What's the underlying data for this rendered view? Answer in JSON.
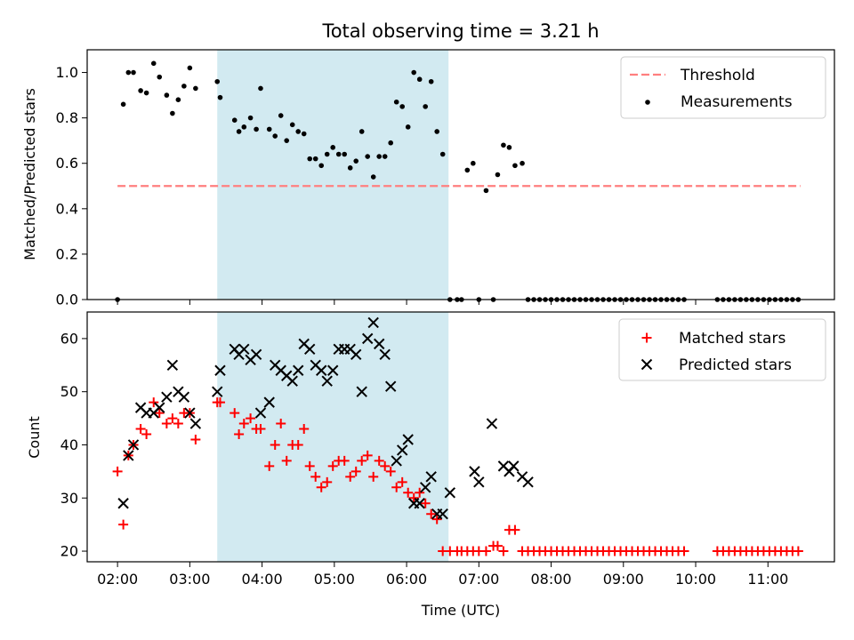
{
  "chart_data": {
    "title": "Total observing time = 3.21 h",
    "shaded_interval_hours": [
      3.38,
      6.58
    ],
    "colors": {
      "shade": "#add8e6",
      "threshold": "#ff7f7f",
      "matched": "#ff0000",
      "predicted": "#000000",
      "measurements": "#000000"
    },
    "x_axis": {
      "label": "Time (UTC)",
      "range_hours": [
        1.58,
        11.92
      ],
      "ticks": [
        {
          "value": 2,
          "label": "02:00"
        },
        {
          "value": 3,
          "label": "03:00"
        },
        {
          "value": 4,
          "label": "04:00"
        },
        {
          "value": 5,
          "label": "05:00"
        },
        {
          "value": 6,
          "label": "06:00"
        },
        {
          "value": 7,
          "label": "07:00"
        },
        {
          "value": 8,
          "label": "08:00"
        },
        {
          "value": 9,
          "label": "09:00"
        },
        {
          "value": 10,
          "label": "10:00"
        },
        {
          "value": 11,
          "label": "11:00"
        }
      ]
    },
    "charts": [
      {
        "type": "scatter",
        "ylabel": "Matched/Predicted stars",
        "ylim": [
          0,
          1.1
        ],
        "yticks": [
          0.0,
          0.2,
          0.4,
          0.6,
          0.8,
          1.0
        ],
        "ytick_labels": [
          "0.0",
          "0.2",
          "0.4",
          "0.6",
          "0.8",
          "1.0"
        ],
        "legend_position": "top-right",
        "threshold": {
          "name": "Threshold",
          "value": 0.5,
          "x_range": [
            2.0,
            11.45
          ]
        },
        "measurements": {
          "name": "Measurements",
          "x": [
            2.0,
            2.08,
            2.15,
            2.22,
            2.32,
            2.4,
            2.5,
            2.58,
            2.68,
            2.76,
            2.84,
            2.92,
            3.0,
            3.08,
            3.38,
            3.42,
            3.62,
            3.68,
            3.75,
            3.84,
            3.92,
            3.98,
            4.1,
            4.18,
            4.26,
            4.34,
            4.42,
            4.5,
            4.58,
            4.66,
            4.74,
            4.82,
            4.9,
            4.98,
            5.06,
            5.14,
            5.22,
            5.3,
            5.38,
            5.46,
            5.54,
            5.62,
            5.7,
            5.78,
            5.86,
            5.94,
            6.02,
            6.1,
            6.18,
            6.26,
            6.34,
            6.42,
            6.5,
            6.6,
            6.7,
            6.76,
            6.84,
            6.92,
            7.0,
            7.1,
            7.2,
            7.26,
            7.34,
            7.42,
            7.5,
            7.6,
            7.68,
            7.76,
            7.84,
            7.92,
            8.0,
            8.08,
            8.16,
            8.24,
            8.32,
            8.4,
            8.48,
            8.56,
            8.64,
            8.72,
            8.8,
            8.88,
            8.96,
            9.04,
            9.12,
            9.2,
            9.28,
            9.36,
            9.44,
            9.52,
            9.6,
            9.68,
            9.76,
            9.84,
            10.3,
            10.38,
            10.46,
            10.54,
            10.62,
            10.7,
            10.78,
            10.86,
            10.94,
            11.02,
            11.1,
            11.18,
            11.26,
            11.34,
            11.42
          ],
          "y": [
            0.0,
            0.86,
            1.0,
            1.0,
            0.92,
            0.91,
            1.04,
            0.98,
            0.9,
            0.82,
            0.88,
            0.94,
            1.02,
            0.93,
            0.96,
            0.89,
            0.79,
            0.74,
            0.76,
            0.8,
            0.75,
            0.93,
            0.75,
            0.72,
            0.81,
            0.7,
            0.77,
            0.74,
            0.73,
            0.62,
            0.62,
            0.59,
            0.64,
            0.67,
            0.64,
            0.64,
            0.58,
            0.61,
            0.74,
            0.63,
            0.54,
            0.63,
            0.63,
            0.69,
            0.87,
            0.85,
            0.76,
            1.0,
            0.97,
            0.85,
            0.96,
            0.74,
            0.64,
            0.0,
            0.0,
            0.0,
            0.57,
            0.6,
            0.0,
            0.48,
            0.0,
            0.55,
            0.68,
            0.67,
            0.59,
            0.6,
            0.0,
            0.0,
            0.0,
            0.0,
            0.0,
            0.0,
            0.0,
            0.0,
            0.0,
            0.0,
            0.0,
            0.0,
            0.0,
            0.0,
            0.0,
            0.0,
            0.0,
            0.0,
            0.0,
            0.0,
            0.0,
            0.0,
            0.0,
            0.0,
            0.0,
            0.0,
            0.0,
            0.0,
            0.0,
            0.0,
            0.0,
            0.0,
            0.0,
            0.0,
            0.0,
            0.0,
            0.0,
            0.0,
            0.0,
            0.0,
            0.0,
            0.0,
            0.0
          ]
        }
      },
      {
        "type": "scatter",
        "xlabel": "Time (UTC)",
        "ylabel": "Count",
        "ylim": [
          18,
          65
        ],
        "yticks": [
          20,
          30,
          40,
          50,
          60
        ],
        "ytick_labels": [
          "20",
          "30",
          "40",
          "50",
          "60"
        ],
        "legend_position": "top-right",
        "series": [
          {
            "name": "Matched stars",
            "marker": "+",
            "x": [
              2.0,
              2.08,
              2.15,
              2.22,
              2.32,
              2.4,
              2.5,
              2.58,
              2.68,
              2.76,
              2.84,
              2.92,
              3.0,
              3.08,
              3.38,
              3.42,
              3.62,
              3.68,
              3.75,
              3.84,
              3.92,
              3.98,
              4.1,
              4.18,
              4.26,
              4.34,
              4.42,
              4.5,
              4.58,
              4.66,
              4.74,
              4.82,
              4.9,
              4.98,
              5.06,
              5.14,
              5.22,
              5.3,
              5.38,
              5.46,
              5.54,
              5.62,
              5.7,
              5.78,
              5.86,
              5.94,
              6.02,
              6.1,
              6.18,
              6.26,
              6.34,
              6.42,
              6.5,
              6.6,
              6.7,
              6.76,
              6.84,
              6.92,
              7.0,
              7.1,
              7.2,
              7.26,
              7.34,
              7.42,
              7.5,
              7.6,
              7.68,
              7.76,
              7.84,
              7.92,
              8.0,
              8.08,
              8.16,
              8.24,
              8.32,
              8.4,
              8.48,
              8.56,
              8.64,
              8.72,
              8.8,
              8.88,
              8.96,
              9.04,
              9.12,
              9.2,
              9.28,
              9.36,
              9.44,
              9.52,
              9.6,
              9.68,
              9.76,
              9.84,
              10.3,
              10.38,
              10.46,
              10.54,
              10.62,
              10.7,
              10.78,
              10.86,
              10.94,
              11.02,
              11.1,
              11.18,
              11.26,
              11.34,
              11.42
            ],
            "y": [
              35,
              25,
              38,
              40,
              43,
              42,
              48,
              46,
              44,
              45,
              44,
              46,
              46,
              41,
              48,
              48,
              46,
              42,
              44,
              45,
              43,
              43,
              36,
              40,
              44,
              37,
              40,
              40,
              43,
              36,
              34,
              32,
              33,
              36,
              37,
              37,
              34,
              35,
              37,
              38,
              34,
              37,
              36,
              35,
              32,
              33,
              31,
              30,
              31,
              29,
              27,
              26,
              20,
              20,
              20,
              20,
              20,
              20,
              20,
              20,
              21,
              21,
              20,
              24,
              24,
              20,
              20,
              20,
              20,
              20,
              20,
              20,
              20,
              20,
              20,
              20,
              20,
              20,
              20,
              20,
              20,
              20,
              20,
              20,
              20,
              20,
              20,
              20,
              20,
              20,
              20,
              20,
              20,
              20,
              20,
              20,
              20,
              20,
              20,
              20,
              20,
              20,
              20,
              20,
              20,
              20,
              20,
              20,
              20
            ]
          },
          {
            "name": "Predicted stars",
            "marker": "x",
            "x": [
              2.08,
              2.15,
              2.22,
              2.32,
              2.4,
              2.5,
              2.58,
              2.68,
              2.76,
              2.84,
              2.92,
              3.0,
              3.08,
              3.38,
              3.42,
              3.62,
              3.68,
              3.75,
              3.84,
              3.92,
              3.98,
              4.1,
              4.18,
              4.26,
              4.34,
              4.42,
              4.5,
              4.58,
              4.66,
              4.74,
              4.82,
              4.9,
              4.98,
              5.06,
              5.14,
              5.22,
              5.3,
              5.38,
              5.46,
              5.54,
              5.62,
              5.7,
              5.78,
              5.86,
              5.94,
              6.02,
              6.1,
              6.18,
              6.26,
              6.34,
              6.42,
              6.5,
              6.6,
              6.94,
              7.0,
              7.18,
              7.34,
              7.42,
              7.48,
              7.6,
              7.68
            ],
            "y": [
              29,
              38,
              40,
              47,
              46,
              46,
              47,
              49,
              55,
              50,
              49,
              46,
              44,
              50,
              54,
              58,
              57,
              58,
              56,
              57,
              46,
              48,
              55,
              54,
              53,
              52,
              54,
              59,
              58,
              55,
              54,
              52,
              54,
              58,
              58,
              58,
              57,
              50,
              60,
              63,
              59,
              57,
              51,
              37,
              39,
              41,
              29,
              29,
              32,
              34,
              27,
              27,
              31,
              35,
              33,
              44,
              36,
              35,
              36,
              34,
              33
            ]
          }
        ]
      }
    ]
  }
}
